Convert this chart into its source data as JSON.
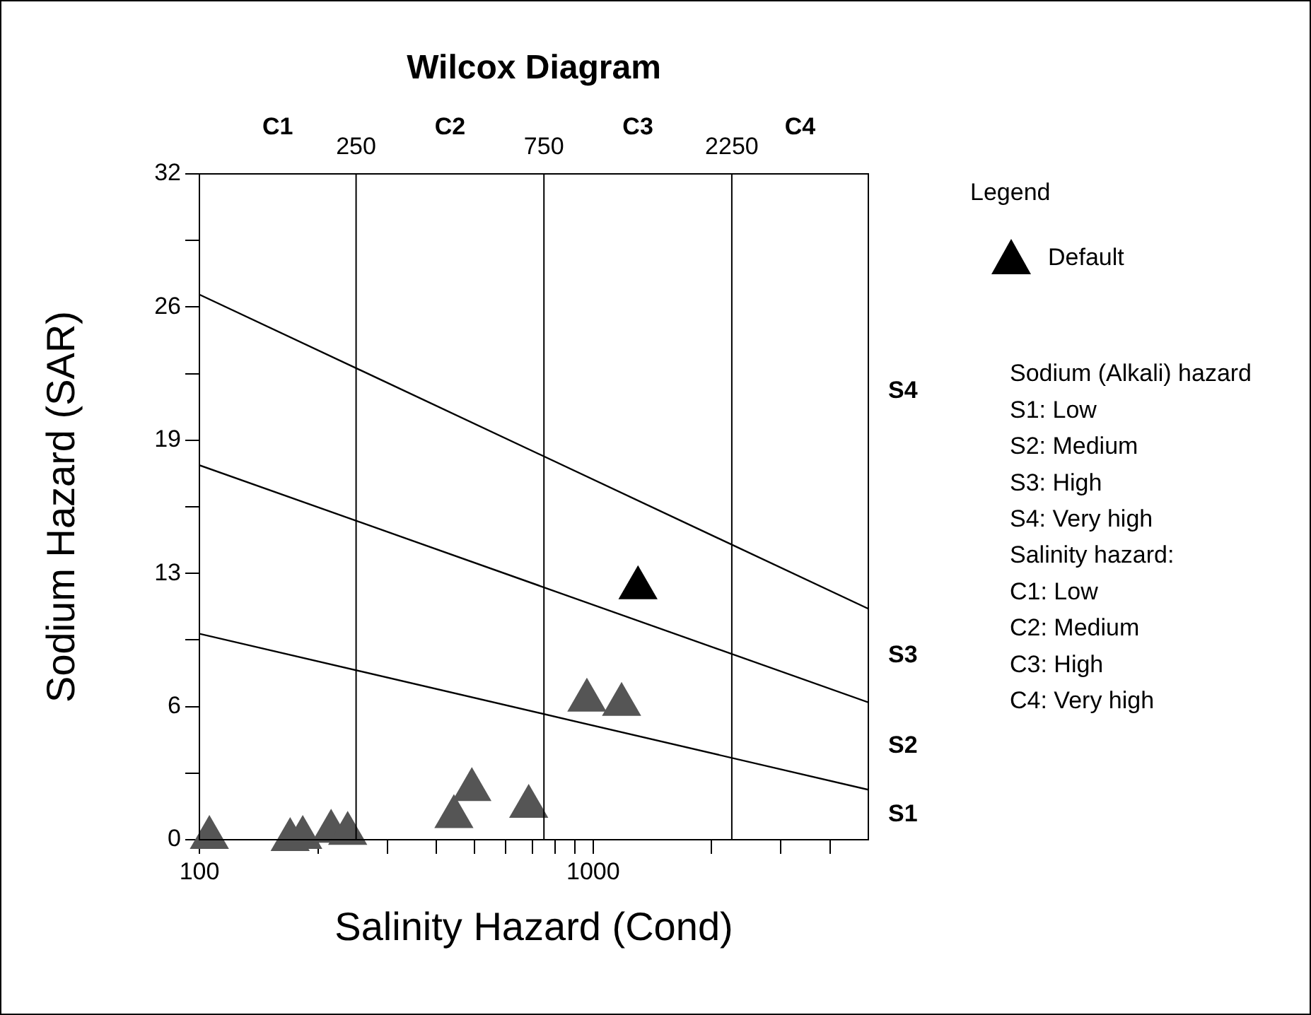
{
  "chart_data": {
    "type": "scatter",
    "title": "Wilcox Diagram",
    "xlabel": "Salinity Hazard (Cond)",
    "ylabel": "Sodium Hazard (SAR)",
    "legend_title": "Legend",
    "log": "x",
    "xlim": [
      100,
      5000
    ],
    "xticks": [
      100,
      {
        "value": 200,
        "label": null
      },
      {
        "value": 300,
        "label": null
      },
      {
        "value": 400,
        "label": null
      },
      {
        "value": 500,
        "label": null
      },
      {
        "value": 600,
        "label": null
      },
      {
        "value": 700,
        "label": null
      },
      {
        "value": 800,
        "label": null
      },
      {
        "value": 900,
        "label": null
      },
      1000,
      {
        "value": 2000,
        "label": null
      },
      {
        "value": 3000,
        "label": null
      },
      {
        "value": 4000,
        "label": null
      }
    ],
    "ylim": [
      0,
      32
    ],
    "yticks": [
      0,
      {
        "value": 3.2,
        "label": null
      },
      {
        "value": 6.4,
        "label": "6"
      },
      {
        "value": 9.6,
        "label": null
      },
      {
        "value": 12.8,
        "label": "13"
      },
      {
        "value": 16,
        "label": null
      },
      {
        "value": 19.2,
        "label": "19"
      },
      {
        "value": 22.4,
        "label": null
      },
      {
        "value": 25.6,
        "label": "26"
      },
      {
        "value": 28.8,
        "label": null
      },
      32
    ],
    "grid": false,
    "legend": "right",
    "marker": "triangle",
    "series": [
      {
        "name": "Default",
        "color": "#000000",
        "colors": [
          "#555555",
          "#555555",
          "#555555",
          "#555555",
          "#555555",
          "#555555",
          "#555555",
          "#555555",
          "#555555",
          "#555555",
          "#000000"
        ],
        "x": [
          106,
          170,
          183,
          216,
          238,
          443,
          492,
          686,
          964,
          1181,
          1300
        ],
        "values": [
          0.1,
          0,
          0.1,
          0.4,
          0.3,
          1.1,
          2.4,
          1.6,
          6.7,
          6.5,
          12.1
        ]
      },
      {
        "type": "line",
        "marker": "none",
        "color": "#000000",
        "x": [
          100,
          5000
        ],
        "values": [
          26.2,
          11.1
        ]
      },
      {
        "type": "line",
        "marker": "none",
        "color": "#000000",
        "x": [
          100,
          5000
        ],
        "values": [
          18.0,
          6.6
        ]
      },
      {
        "type": "line",
        "marker": "none",
        "color": "#000000",
        "x": [
          100,
          5000
        ],
        "values": [
          9.9,
          2.4
        ]
      }
    ],
    "ref_lines": [
      {
        "axis": "x",
        "value": 250,
        "label": "250"
      },
      {
        "axis": "x",
        "value": 750,
        "label": "750"
      },
      {
        "axis": "x",
        "value": 2250,
        "label": "2250"
      }
    ],
    "annotations": [
      "C1",
      "C2",
      "C3",
      "C4",
      "S4",
      "S3",
      "S2",
      "S1",
      "Sodium (Alkali) hazard",
      "S1: Low",
      "S2: Medium",
      "S3: High",
      "S4: Very high",
      "Salinity hazard:",
      "C1: Low",
      "C2: Medium",
      "C3: High",
      "C4: Very high"
    ]
  }
}
